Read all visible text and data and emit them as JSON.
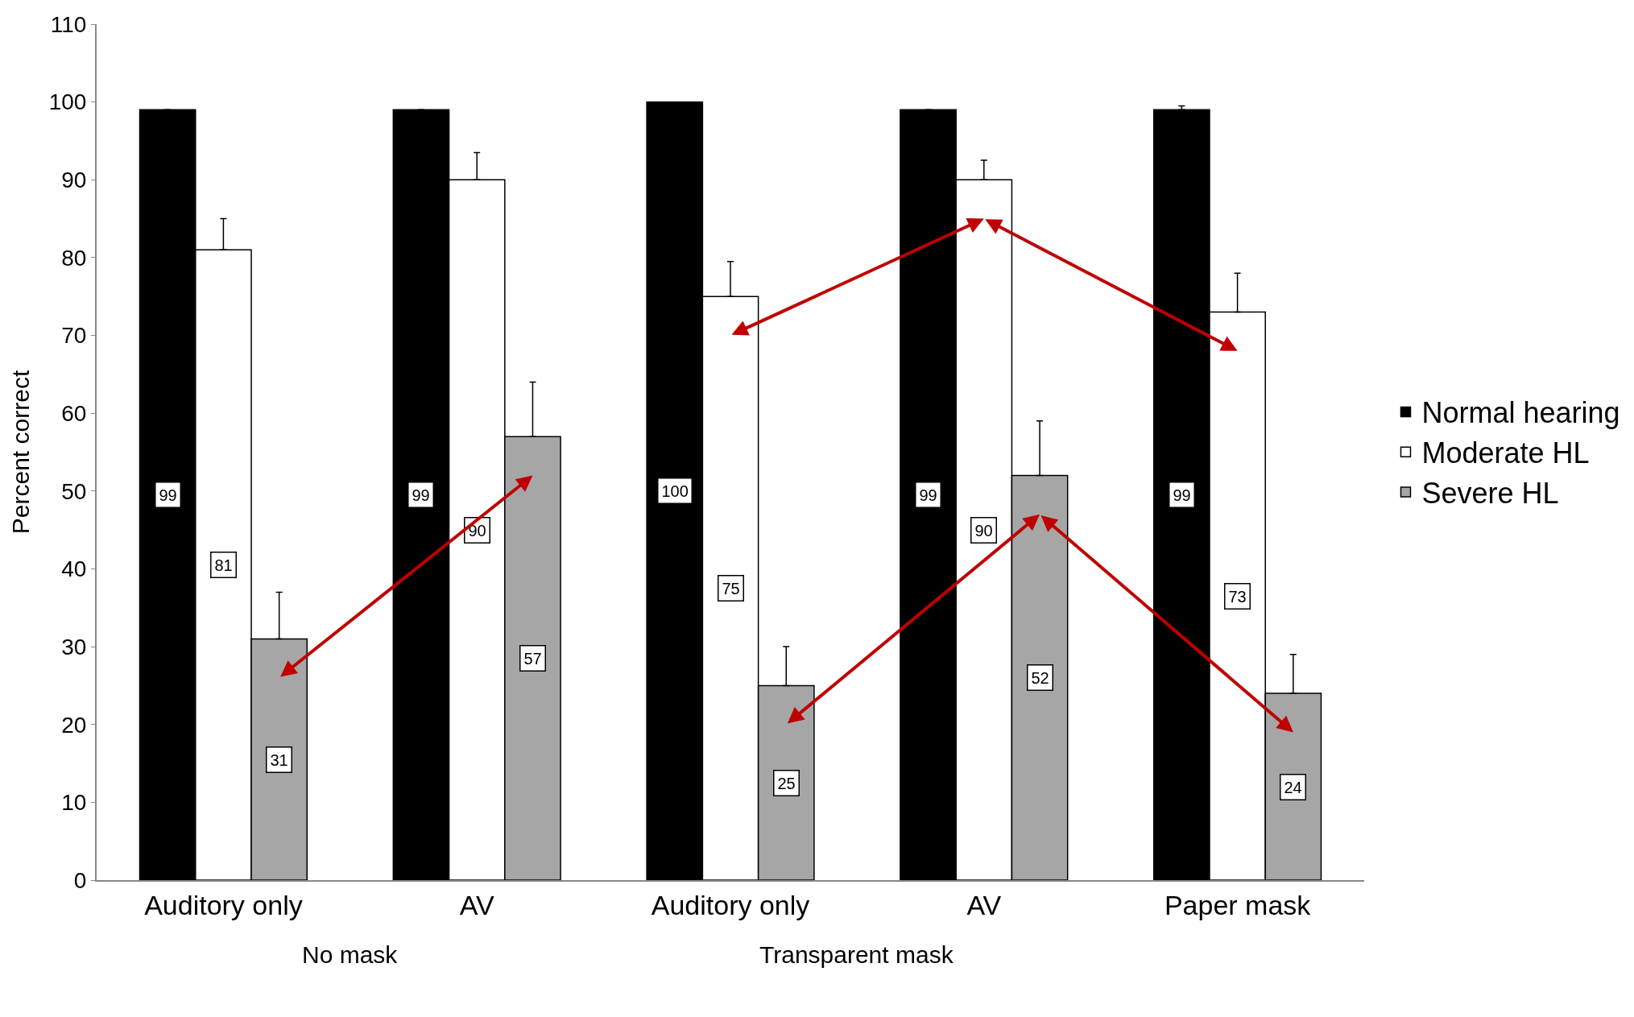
{
  "chart_data": {
    "type": "bar",
    "ylabel": "Percent correct",
    "categories": [
      "Auditory only",
      "AV",
      "Auditory only",
      "AV",
      "Paper mask"
    ],
    "series": [
      {
        "name": "Normal hearing",
        "color": "#000000",
        "values": [
          99,
          99,
          100,
          99,
          99
        ],
        "errors": [
          null,
          null,
          null,
          null,
          0.5
        ]
      },
      {
        "name": "Moderate HL",
        "color": "#ffffff",
        "values": [
          81,
          90,
          75,
          90,
          73
        ],
        "errors": [
          4,
          3.5,
          4.5,
          2.5,
          5
        ]
      },
      {
        "name": "Severe HL",
        "color": "#a6a6a6",
        "values": [
          31,
          57,
          25,
          52,
          24
        ],
        "errors": [
          6,
          7,
          5,
          7,
          5
        ]
      }
    ],
    "annotations": [
      "No mask",
      "Transparent mask"
    ],
    "ylim": [
      0,
      110
    ],
    "yticks": [
      0,
      10,
      20,
      30,
      40,
      50,
      60,
      70,
      80,
      90,
      100,
      110
    ],
    "data_labels": true,
    "legend": "right"
  }
}
